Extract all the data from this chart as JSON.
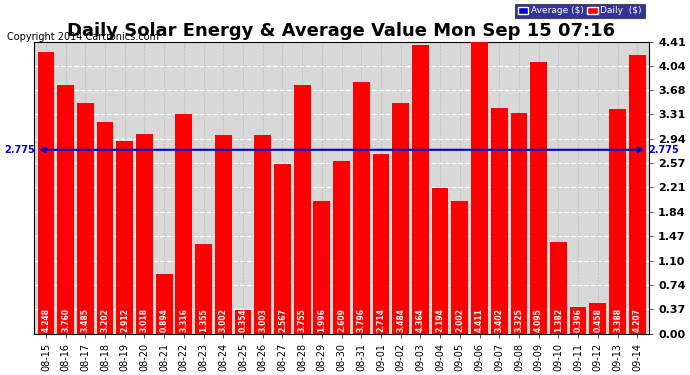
{
  "title": "Daily Solar Energy & Average Value Mon Sep 15 07:16",
  "copyright": "Copyright 2014 Cartronics.com",
  "categories": [
    "08-15",
    "08-16",
    "08-17",
    "08-18",
    "08-19",
    "08-20",
    "08-21",
    "08-22",
    "08-23",
    "08-24",
    "08-25",
    "08-26",
    "08-27",
    "08-28",
    "08-29",
    "08-30",
    "08-31",
    "09-01",
    "09-02",
    "09-03",
    "09-04",
    "09-05",
    "09-06",
    "09-07",
    "09-08",
    "09-09",
    "09-10",
    "09-11",
    "09-12",
    "09-13",
    "09-14"
  ],
  "values": [
    4.248,
    3.76,
    3.485,
    3.202,
    2.912,
    3.018,
    0.894,
    3.316,
    1.355,
    3.002,
    0.354,
    3.003,
    2.567,
    3.755,
    1.996,
    2.609,
    3.796,
    2.714,
    3.484,
    4.364,
    2.194,
    2.002,
    4.411,
    3.402,
    3.325,
    4.095,
    1.382,
    0.396,
    0.458,
    3.388,
    4.207
  ],
  "average": 2.775,
  "bar_color": "#ff0000",
  "average_color": "#0000cc",
  "background_color": "#ffffff",
  "ylim": [
    0,
    4.41
  ],
  "yticks": [
    0.0,
    0.37,
    0.74,
    1.1,
    1.47,
    1.84,
    2.21,
    2.57,
    2.94,
    3.31,
    3.68,
    4.04,
    4.41
  ],
  "average_label": "Average ($)",
  "daily_label": "Daily  ($)",
  "average_text": "2.775",
  "title_fontsize": 13,
  "tick_fontsize": 7,
  "label_fontsize": 5.5,
  "copyright_fontsize": 7
}
